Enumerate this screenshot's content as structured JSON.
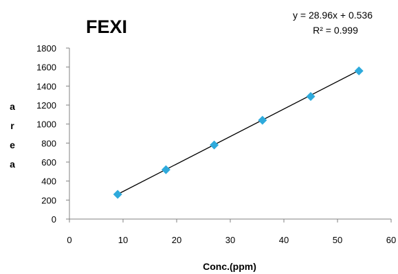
{
  "chart_data": {
    "type": "scatter",
    "title": "FEXI",
    "xlabel": "Conc.(ppm)",
    "ylabel": "area",
    "xlim": [
      0,
      60
    ],
    "ylim": [
      0,
      1800
    ],
    "xticks": [
      0,
      10,
      20,
      30,
      40,
      50,
      60
    ],
    "yticks": [
      0,
      200,
      400,
      600,
      800,
      1000,
      1200,
      1400,
      1600,
      1800
    ],
    "grid": false,
    "marker": "diamond",
    "marker_color": "#2EAADC",
    "trendline_color": "#000000",
    "series": [
      {
        "x": [
          9,
          18,
          27,
          36,
          45,
          54
        ],
        "y": [
          260,
          520,
          780,
          1040,
          1290,
          1560
        ]
      }
    ],
    "trendline": {
      "type": "linear",
      "slope": 28.96,
      "intercept": 0.536,
      "equation": "y = 28.96x + 0.536",
      "r2_label": "R² = 0.999"
    }
  }
}
